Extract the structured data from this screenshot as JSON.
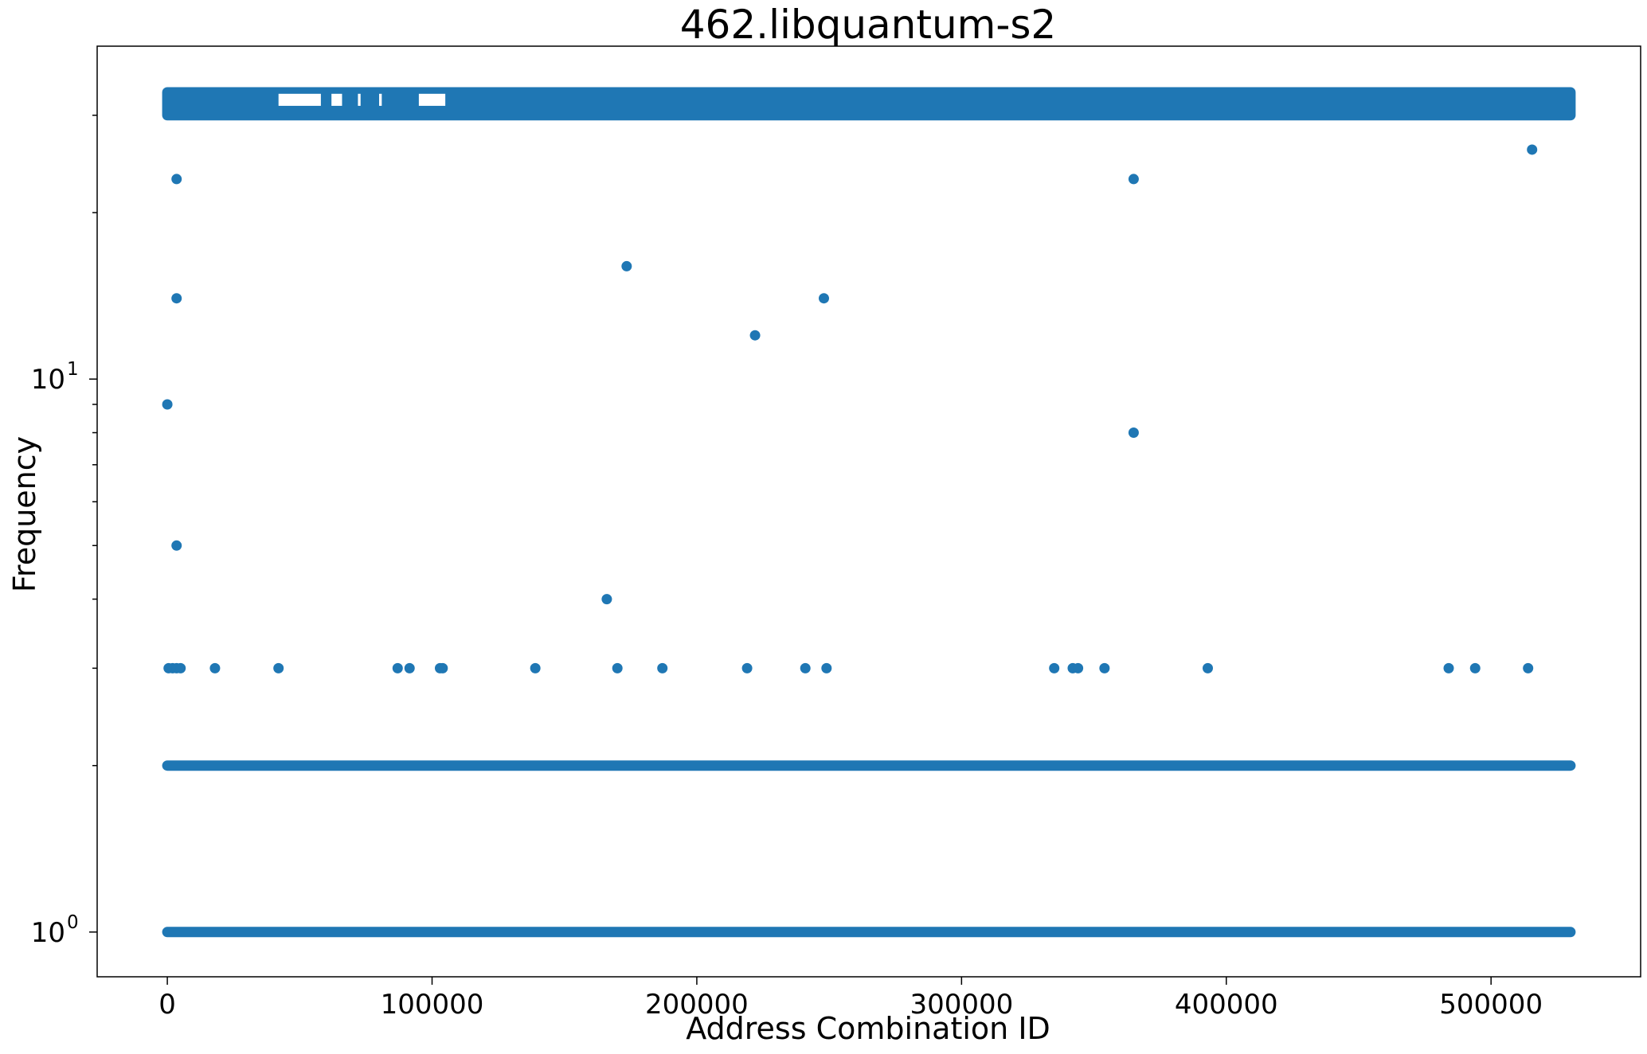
{
  "chart_data": {
    "type": "scatter",
    "title": "462.libquantum-s2",
    "xlabel": "Address Combination ID",
    "ylabel": "Frequency",
    "xlim": [
      -26500,
      556500
    ],
    "ylim": [
      0.83,
      40
    ],
    "yscale": "log",
    "grid": false,
    "color": "#1f77b4",
    "x_ticks": [
      {
        "value": 0,
        "label": "0"
      },
      {
        "value": 100000,
        "label": "100000"
      },
      {
        "value": 200000,
        "label": "200000"
      },
      {
        "value": 300000,
        "label": "300000"
      },
      {
        "value": 400000,
        "label": "400000"
      },
      {
        "value": 500000,
        "label": "500000"
      }
    ],
    "y_ticks": [
      {
        "value": 1,
        "base": "10",
        "exp": "0"
      },
      {
        "value": 10,
        "base": "10",
        "exp": "1"
      }
    ],
    "y_minor_ticks": [
      2,
      3,
      4,
      5,
      6,
      7,
      8,
      9,
      20,
      30
    ],
    "dense_bands": [
      {
        "x_range": [
          0,
          530000
        ],
        "y": 1
      },
      {
        "x_range": [
          0,
          530000
        ],
        "y": 2
      },
      {
        "x_range": [
          0,
          530000
        ],
        "y_range": [
          30,
          33
        ]
      }
    ],
    "band_gaps": [
      {
        "x_range": [
          42000,
          58000
        ],
        "y": 32
      },
      {
        "x_range": [
          62000,
          66000
        ],
        "y": 32
      },
      {
        "x_range": [
          72000,
          73000
        ],
        "y": 32
      },
      {
        "x_range": [
          80000,
          81000
        ],
        "y": 32
      },
      {
        "x_range": [
          95000,
          105000
        ],
        "y": 32
      }
    ],
    "points": [
      {
        "x": 0,
        "y": 9
      },
      {
        "x": 3500,
        "y": 23
      },
      {
        "x": 3500,
        "y": 14
      },
      {
        "x": 3500,
        "y": 5
      },
      {
        "x": 500,
        "y": 3
      },
      {
        "x": 2000,
        "y": 3
      },
      {
        "x": 3500,
        "y": 3
      },
      {
        "x": 5000,
        "y": 3
      },
      {
        "x": 18000,
        "y": 3
      },
      {
        "x": 42000,
        "y": 3
      },
      {
        "x": 87000,
        "y": 3
      },
      {
        "x": 91500,
        "y": 3
      },
      {
        "x": 103000,
        "y": 3
      },
      {
        "x": 104000,
        "y": 3
      },
      {
        "x": 139000,
        "y": 3
      },
      {
        "x": 166000,
        "y": 4
      },
      {
        "x": 170000,
        "y": 3
      },
      {
        "x": 173500,
        "y": 16
      },
      {
        "x": 187000,
        "y": 3
      },
      {
        "x": 219000,
        "y": 3
      },
      {
        "x": 222000,
        "y": 12
      },
      {
        "x": 241000,
        "y": 3
      },
      {
        "x": 248000,
        "y": 14
      },
      {
        "x": 249000,
        "y": 3
      },
      {
        "x": 335000,
        "y": 3
      },
      {
        "x": 342000,
        "y": 3
      },
      {
        "x": 344000,
        "y": 3
      },
      {
        "x": 354000,
        "y": 3
      },
      {
        "x": 365000,
        "y": 23
      },
      {
        "x": 365000,
        "y": 8
      },
      {
        "x": 393000,
        "y": 3
      },
      {
        "x": 484000,
        "y": 3
      },
      {
        "x": 494000,
        "y": 3
      },
      {
        "x": 514000,
        "y": 3
      },
      {
        "x": 515500,
        "y": 26
      }
    ]
  }
}
